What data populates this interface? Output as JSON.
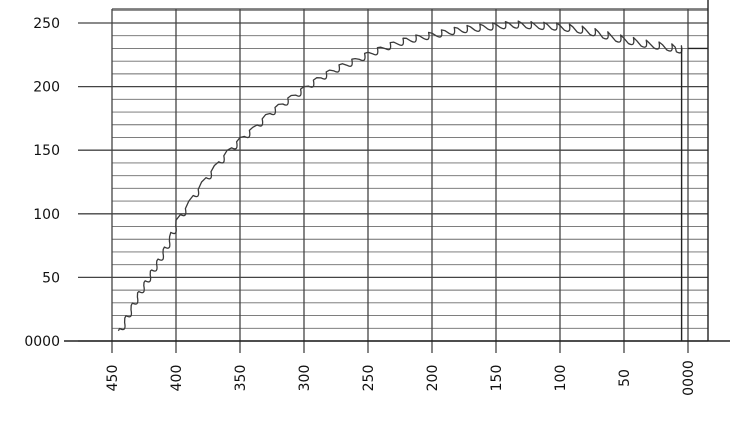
{
  "chart_data": {
    "type": "line",
    "title": "",
    "xlabel": "",
    "ylabel": "",
    "x_reversed": true,
    "xlim": [
      450,
      0
    ],
    "ylim": [
      0,
      250
    ],
    "x_ticks": [
      450,
      400,
      350,
      300,
      250,
      200,
      150,
      100,
      50,
      0
    ],
    "x_tick_labels": [
      "450",
      "400",
      "350",
      "300",
      "250",
      "200",
      "150",
      "100",
      "50",
      "0000"
    ],
    "y_ticks": [
      0,
      50,
      100,
      150,
      200,
      250
    ],
    "y_tick_labels": [
      "0000",
      "50",
      "100",
      "150",
      "200",
      "250"
    ],
    "minor_y_step": 10,
    "grid": true,
    "legend": "none",
    "series": [
      {
        "values_x": [
          445,
          440,
          435,
          430,
          425,
          420,
          415,
          410,
          405,
          400,
          390,
          380,
          370,
          360,
          350,
          340,
          330,
          320,
          310,
          300,
          290,
          280,
          270,
          260,
          250,
          240,
          230,
          220,
          210,
          200,
          190,
          180,
          170,
          160,
          150,
          140,
          130,
          120,
          110,
          100,
          90,
          80,
          70,
          60,
          50,
          40,
          30,
          20,
          10,
          5
        ],
        "values_y": [
          8,
          18,
          28,
          38,
          46,
          55,
          63,
          72,
          82,
          95,
          110,
          125,
          138,
          150,
          160,
          168,
          178,
          186,
          193,
          200,
          207,
          213,
          218,
          222,
          227,
          231,
          235,
          238,
          240,
          242,
          244,
          246,
          247,
          248,
          249,
          250,
          250,
          249,
          249,
          248,
          247,
          245,
          243,
          240,
          238,
          236,
          234,
          233,
          231,
          230
        ]
      }
    ]
  }
}
